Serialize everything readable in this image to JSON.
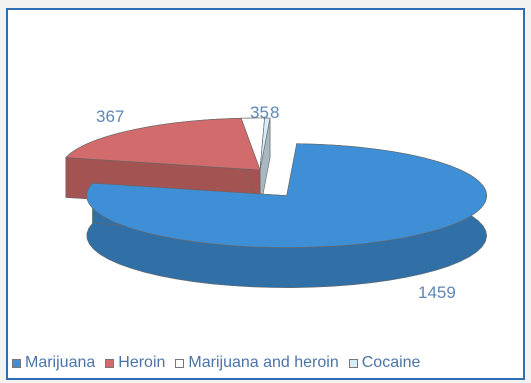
{
  "chart_data": {
    "type": "pie",
    "title": "",
    "categories": [
      "Marijuana",
      "Heroin",
      "Marijuana and heroin",
      "Cocaine"
    ],
    "values": [
      1459,
      367,
      35,
      8
    ],
    "data_labels": [
      "1459",
      "367",
      "35",
      "8"
    ],
    "colors": [
      "#3f8fd6",
      "#d26b6b",
      "#ffffff",
      "#d6ecf7"
    ],
    "exploded_slice": "Marijuana",
    "style": "3d",
    "legend_position": "bottom"
  }
}
